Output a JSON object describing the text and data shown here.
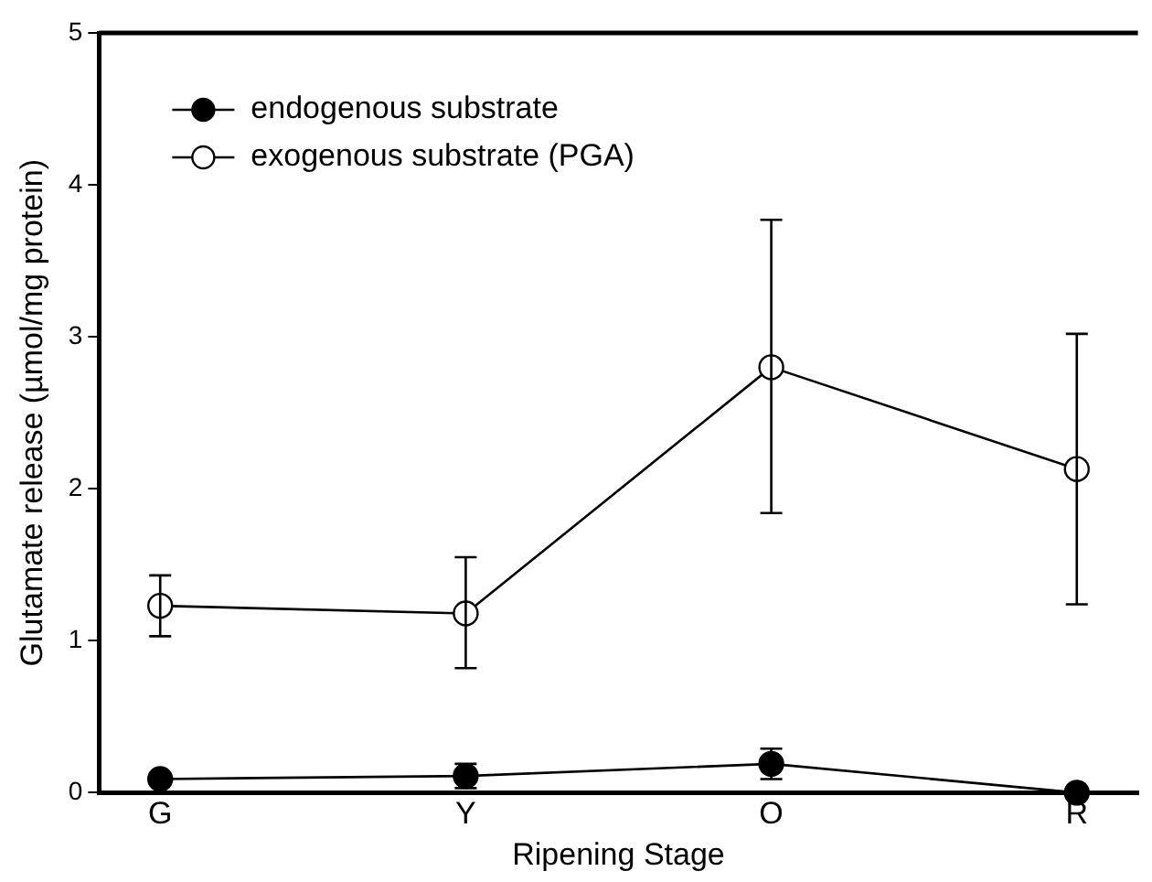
{
  "chart_data": {
    "type": "line",
    "xlabel": "Ripening Stage",
    "ylabel": "Glutamate release (µmol/mg protein)",
    "categories": [
      "G",
      "Y",
      "O",
      "R"
    ],
    "series": [
      {
        "name": "endogenous substrate",
        "color": "#000000",
        "marker": "circle",
        "values": [
          0.09,
          0.11,
          0.19,
          0.0
        ],
        "errors": [
          null,
          0.08,
          0.1,
          null
        ]
      },
      {
        "name": "exogenous substrate (PGA)",
        "color": "#ffffff",
        "marker": "circle",
        "values": [
          1.23,
          1.18,
          2.8,
          2.13
        ],
        "errors": [
          [
            1.03,
            1.43
          ],
          [
            0.82,
            1.55
          ],
          [
            1.84,
            3.77
          ],
          [
            1.24,
            3.02
          ]
        ]
      }
    ],
    "ylim": [
      0,
      5
    ],
    "yticks": [
      0,
      1,
      2,
      3,
      4,
      5
    ],
    "grid": false,
    "legend": "top left"
  }
}
